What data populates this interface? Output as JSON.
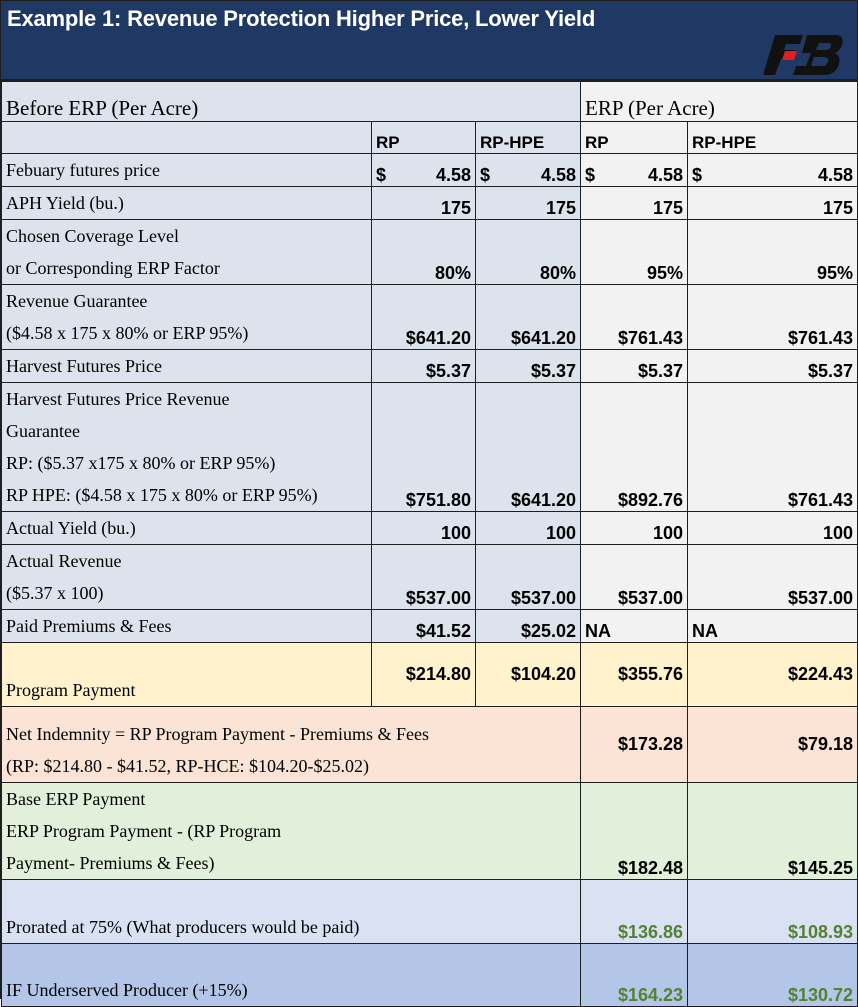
{
  "title": "Example 1: Revenue Protection Higher Price, Lower Yield",
  "logo": {
    "icon": "farm-bureau-logo",
    "colors": {
      "dark": "#111111",
      "accent": "#e02020"
    }
  },
  "sections": {
    "before": "Before ERP (Per Acre)",
    "erp": "ERP (Per Acre)"
  },
  "columns": {
    "rp": "RP",
    "rp_hpe": "RP-HPE",
    "erp_rp": "RP",
    "erp_rp_hpe": "RP-HPE"
  },
  "rows": {
    "feb": {
      "label": "Febuary futures price",
      "sym": "$",
      "v1": "4.58",
      "v2": "4.58",
      "v3": "4.58",
      "v4": "4.58"
    },
    "aph": {
      "label": "APH Yield (bu.)",
      "v1": "175",
      "v2": "175",
      "v3": "175",
      "v4": "175"
    },
    "cov": {
      "l1": "Chosen Coverage Level",
      "l2": "or Corresponding ERP Factor",
      "v1": "80%",
      "v2": "80%",
      "v3": "95%",
      "v4": "95%"
    },
    "rg": {
      "l1": "Revenue Guarantee",
      "l2": "($4.58 x 175 x 80% or ERP 95%)",
      "v1": "$641.20",
      "v2": "$641.20",
      "v3": "$761.43",
      "v4": "$761.43"
    },
    "hfp": {
      "label": "Harvest Futures Price",
      "v1": "$5.37",
      "v2": "$5.37",
      "v3": "$5.37",
      "v4": "$5.37"
    },
    "hfprg": {
      "l1": "Harvest Futures Price Revenue",
      "l2": "Guarantee",
      "l3": "RP: ($5.37 x175 x 80% or ERP 95%)",
      "l4": "RP HPE: ($4.58 x 175 x 80% or ERP 95%)",
      "v1": "$751.80",
      "v2": "$641.20",
      "v3": "$892.76",
      "v4": "$761.43"
    },
    "ay": {
      "label": "Actual Yield (bu.)",
      "v1": "100",
      "v2": "100",
      "v3": "100",
      "v4": "100"
    },
    "ar": {
      "l1": "Actual Revenue",
      "l2": "($5.37 x 100)",
      "v1": "$537.00",
      "v2": "$537.00",
      "v3": "$537.00",
      "v4": "$537.00"
    },
    "ppf": {
      "label": "Paid Premiums & Fees",
      "v1": "$41.52",
      "v2": "$25.02",
      "v3": "NA",
      "v4": "NA"
    },
    "pp": {
      "label": "Program Payment",
      "v1": "$214.80",
      "v2": "$104.20",
      "v3": "$355.76",
      "v4": "$224.43"
    },
    "ni": {
      "l1": "Net Indemnity = RP Program Payment - Premiums & Fees",
      "l2": "(RP: $214.80 - $41.52, RP-HCE: $104.20-$25.02)",
      "v3": "$173.28",
      "v4": "$79.18"
    },
    "base": {
      "l1": "Base ERP Payment",
      "l2": "ERP Program Payment - (RP Program",
      "l3": "Payment- Premiums & Fees)",
      "v3": "$182.48",
      "v4": "$145.25"
    },
    "pror": {
      "label": "Prorated at 75% (What producers would be paid)",
      "v3": "$136.86",
      "v4": "$108.93"
    },
    "under": {
      "label": "IF Underserved Producer (+15%)",
      "v3": "$164.23",
      "v4": "$130.72"
    }
  }
}
